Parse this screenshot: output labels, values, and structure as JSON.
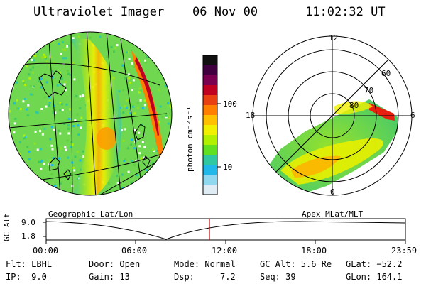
{
  "header": {
    "instrument": "Ultraviolet Imager",
    "date": "06 Nov 00",
    "time": "11:02:32 UT"
  },
  "left_panel": {
    "caption": "Geographic Lat/Lon"
  },
  "right_panel": {
    "caption": "Apex MLat/MLT",
    "mlt_labels": [
      "12",
      "18",
      "6",
      "0"
    ],
    "mlat_labels": [
      "60",
      "70",
      "80"
    ]
  },
  "colorbar": {
    "unit_label": "photon cm⁻²s⁻¹",
    "ticks": [
      "100",
      "10"
    ],
    "colors": [
      "#101010",
      "#400040",
      "#7a0050",
      "#c00020",
      "#e84010",
      "#ff8000",
      "#ffc000",
      "#f0f000",
      "#b0f000",
      "#60e020",
      "#30c8a0",
      "#20b8e8",
      "#90d8f0",
      "#e0ecf4"
    ]
  },
  "timeline": {
    "axis_label": "GC Alt",
    "y_ticks": [
      "9.0",
      "1.8"
    ],
    "x_ticks": [
      "00:00",
      "06:00",
      "12:00",
      "18:00",
      "23:59"
    ],
    "current_marker_color": "#c00000"
  },
  "status": {
    "flt": "Flt: LBHL",
    "ip": "IP:  9.0",
    "door": "Door: Open",
    "gain": "Gain: 13",
    "mode": "Mode: Normal",
    "dsp": "Dsp:     7.2",
    "gc_alt": "GC Alt: 5.6 Re",
    "seq": "Seq: 39",
    "glat": "GLat: −52.2",
    "glon": "GLon: 164.1"
  }
}
